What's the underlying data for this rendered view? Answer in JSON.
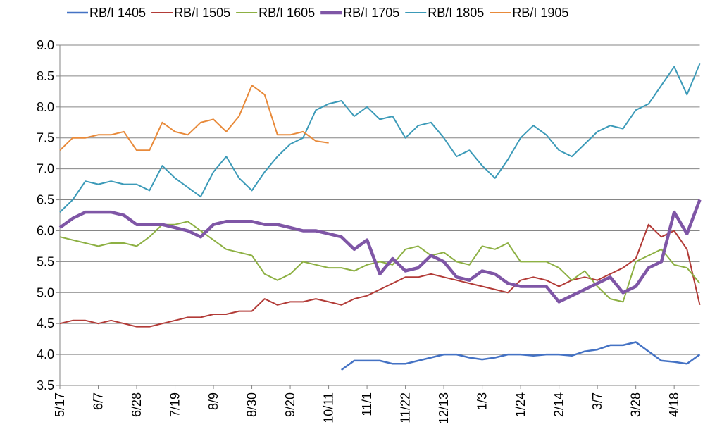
{
  "chart_data": {
    "type": "line",
    "categories": [
      "5/17",
      null,
      null,
      "6/7",
      null,
      null,
      "6/28",
      null,
      null,
      "7/19",
      null,
      null,
      "8/9",
      null,
      null,
      "8/30",
      null,
      null,
      "9/20",
      null,
      null,
      "10/11",
      null,
      null,
      "11/1",
      null,
      null,
      "11/22",
      null,
      null,
      "12/13",
      null,
      null,
      "1/3",
      null,
      null,
      "1/24",
      null,
      null,
      "2/14",
      null,
      null,
      "3/7",
      null,
      null,
      "3/28",
      null,
      null,
      "4/18",
      null,
      null
    ],
    "ylim": [
      3.5,
      9.0
    ],
    "yticks": [
      3.5,
      {
        "value": 4,
        "label": "4.0"
      },
      4.5,
      {
        "value": 5,
        "label": "5.0"
      },
      5.5,
      {
        "value": 6,
        "label": "6.0"
      },
      6.5,
      {
        "value": 7,
        "label": "7.0"
      },
      7.5,
      {
        "value": 8,
        "label": "8.0"
      },
      8.5,
      {
        "value": 9,
        "label": "9.0"
      }
    ],
    "grid": true,
    "legend": "top",
    "series": [
      {
        "name": "RB/I 1405",
        "color": "#4472c4",
        "width": 2.5,
        "values": [
          null,
          null,
          null,
          null,
          null,
          null,
          null,
          null,
          null,
          null,
          null,
          null,
          null,
          null,
          null,
          null,
          null,
          null,
          null,
          null,
          null,
          null,
          3.75,
          3.9,
          3.9,
          3.9,
          3.85,
          3.85,
          3.9,
          3.95,
          4.0,
          4.0,
          3.95,
          3.92,
          3.95,
          4.0,
          4.0,
          3.98,
          4.0,
          4.0,
          3.98,
          4.05,
          4.08,
          4.15,
          4.15,
          4.2,
          4.05,
          3.9,
          3.88,
          3.85,
          4.0
        ]
      },
      {
        "name": "RB/I 1505",
        "color": "#b23b37",
        "width": 2,
        "values": [
          4.5,
          4.55,
          4.55,
          4.5,
          4.55,
          4.5,
          4.45,
          4.45,
          4.5,
          4.55,
          4.6,
          4.6,
          4.65,
          4.65,
          4.7,
          4.7,
          4.9,
          4.8,
          4.85,
          4.85,
          4.9,
          4.85,
          4.8,
          4.9,
          4.95,
          5.05,
          5.15,
          5.25,
          5.25,
          5.3,
          5.25,
          5.2,
          5.15,
          5.1,
          5.05,
          5.0,
          5.2,
          5.25,
          5.2,
          5.1,
          5.2,
          5.25,
          5.2,
          5.3,
          5.4,
          5.55,
          6.1,
          5.9,
          6.0,
          5.7,
          4.8
        ]
      },
      {
        "name": "RB/I 1605",
        "color": "#8db043",
        "width": 2,
        "values": [
          5.9,
          5.85,
          5.8,
          5.75,
          5.8,
          5.8,
          5.75,
          5.9,
          6.1,
          6.1,
          6.15,
          6.0,
          5.85,
          5.7,
          5.65,
          5.6,
          5.3,
          5.2,
          5.3,
          5.5,
          5.45,
          5.4,
          5.4,
          5.35,
          5.45,
          5.5,
          5.45,
          5.7,
          5.75,
          5.6,
          5.65,
          5.5,
          5.45,
          5.75,
          5.7,
          5.8,
          5.5,
          5.5,
          5.5,
          5.4,
          5.2,
          5.35,
          5.1,
          4.9,
          4.85,
          5.5,
          5.6,
          5.7,
          5.45,
          5.4,
          5.15
        ]
      },
      {
        "name": "RB/I 1705",
        "color": "#7f56a6",
        "width": 4.5,
        "values": [
          6.05,
          6.2,
          6.3,
          6.3,
          6.3,
          6.25,
          6.1,
          6.1,
          6.1,
          6.05,
          6.0,
          5.9,
          6.1,
          6.15,
          6.15,
          6.15,
          6.1,
          6.1,
          6.05,
          6.0,
          6.0,
          5.95,
          5.9,
          5.7,
          5.85,
          5.3,
          5.55,
          5.35,
          5.4,
          5.6,
          5.5,
          5.25,
          5.2,
          5.35,
          5.3,
          5.15,
          5.1,
          5.1,
          5.1,
          4.85,
          4.95,
          5.05,
          5.15,
          5.25,
          5.0,
          5.1,
          5.4,
          5.5,
          6.3,
          5.95,
          6.5
        ]
      },
      {
        "name": "RB/I 1805",
        "color": "#3b9ab8",
        "width": 2,
        "values": [
          6.3,
          6.5,
          6.8,
          6.75,
          6.8,
          6.75,
          6.75,
          6.65,
          7.05,
          6.85,
          6.7,
          6.55,
          6.95,
          7.2,
          6.85,
          6.65,
          6.95,
          7.2,
          7.4,
          7.5,
          7.95,
          8.05,
          8.1,
          7.85,
          8.0,
          7.8,
          7.85,
          7.5,
          7.7,
          7.75,
          7.5,
          7.2,
          7.3,
          7.05,
          6.85,
          7.15,
          7.5,
          7.7,
          7.55,
          7.3,
          7.2,
          7.4,
          7.6,
          7.7,
          7.65,
          7.95,
          8.05,
          8.35,
          8.65,
          8.2,
          8.7
        ]
      },
      {
        "name": "RB/I 1905",
        "color": "#e88a3a",
        "width": 2,
        "values": [
          7.3,
          7.5,
          7.5,
          7.55,
          7.55,
          7.6,
          7.3,
          7.3,
          7.75,
          7.6,
          7.55,
          7.75,
          7.8,
          7.6,
          7.85,
          8.35,
          8.2,
          7.55,
          7.55,
          7.6,
          7.45,
          7.42,
          null,
          null,
          null,
          null,
          null,
          null,
          null,
          null,
          null,
          null,
          null,
          null,
          null,
          null,
          null,
          null,
          null,
          null,
          null,
          null,
          null,
          null,
          null,
          null,
          null,
          null,
          null,
          null,
          null
        ]
      }
    ]
  }
}
